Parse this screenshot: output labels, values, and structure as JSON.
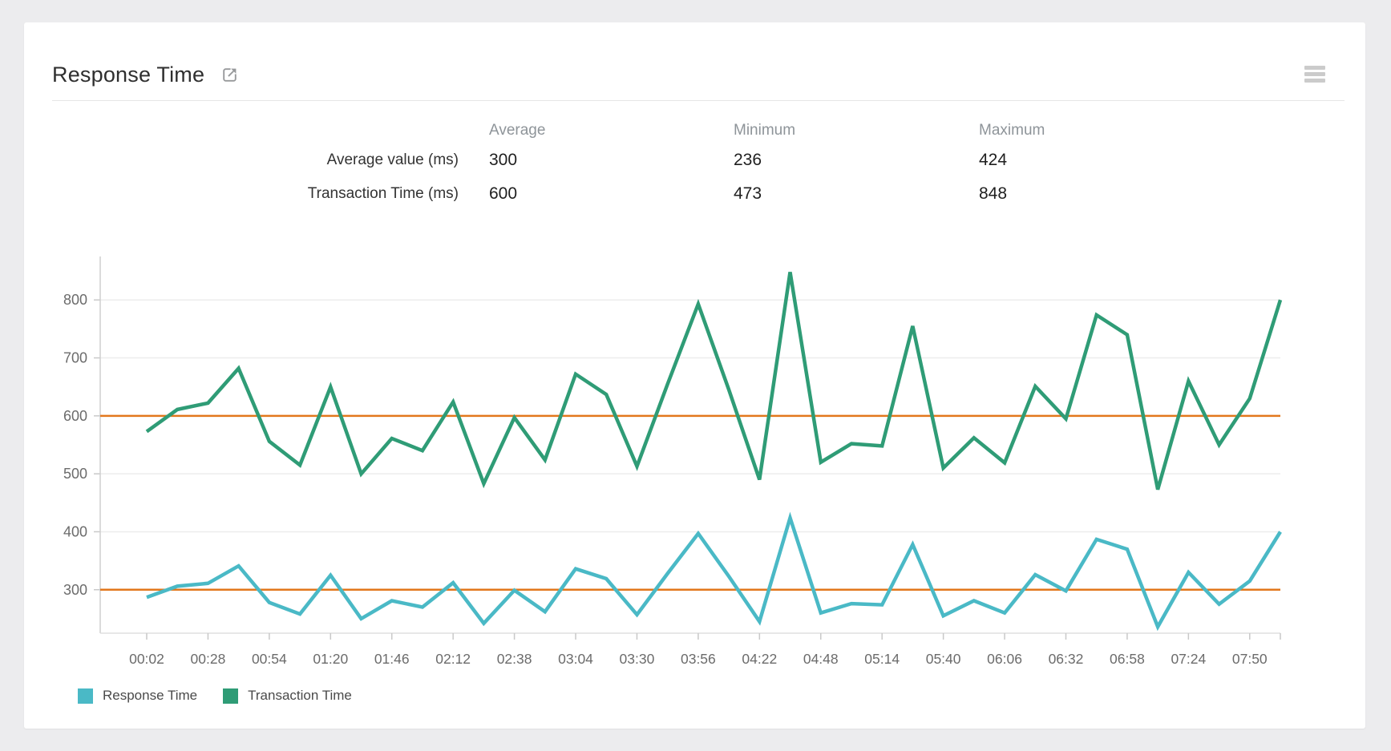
{
  "header": {
    "title": "Response Time"
  },
  "summary": {
    "columns": [
      "Average",
      "Minimum",
      "Maximum"
    ],
    "rows": [
      {
        "label": "Average value (ms)",
        "values": [
          "300",
          "236",
          "424"
        ]
      },
      {
        "label": "Transaction Time (ms)",
        "values": [
          "600",
          "473",
          "848"
        ]
      }
    ]
  },
  "legend": {
    "items": [
      {
        "label": "Response Time",
        "color": "#4ab9c6"
      },
      {
        "label": "Transaction Time",
        "color": "#2f9c76"
      }
    ]
  },
  "chart_data": {
    "type": "line",
    "title": "Response Time",
    "x": [
      "00:02",
      "00:15",
      "00:28",
      "00:41",
      "00:54",
      "01:07",
      "01:20",
      "01:33",
      "01:46",
      "01:59",
      "02:12",
      "02:25",
      "02:38",
      "02:51",
      "03:04",
      "03:17",
      "03:30",
      "03:43",
      "03:56",
      "04:09",
      "04:22",
      "04:35",
      "04:48",
      "05:01",
      "05:14",
      "05:27",
      "05:40",
      "05:53",
      "06:06",
      "06:19",
      "06:32",
      "06:45",
      "06:58",
      "07:11",
      "07:24",
      "07:37",
      "07:50",
      "08:03"
    ],
    "x_tick_labels": [
      "00:02",
      "00:28",
      "00:54",
      "01:20",
      "01:46",
      "02:12",
      "02:38",
      "03:04",
      "03:30",
      "03:56",
      "04:22",
      "04:48",
      "05:14",
      "05:40",
      "06:06",
      "06:32",
      "06:58",
      "07:24",
      "07:50"
    ],
    "series": [
      {
        "name": "Response Time",
        "color": "#4ab9c6",
        "avg_line": 300,
        "values": [
          287,
          306,
          311,
          341,
          278,
          258,
          325,
          250,
          281,
          270,
          312,
          242,
          299,
          262,
          336,
          319,
          257,
          328,
          397,
          323,
          245,
          424,
          260,
          276,
          274,
          378,
          255,
          281,
          260,
          326,
          298,
          387,
          370,
          236,
          330,
          275,
          315,
          400
        ]
      },
      {
        "name": "Transaction Time",
        "color": "#2f9c76",
        "avg_line": 600,
        "values": [
          573,
          611,
          622,
          682,
          556,
          515,
          650,
          500,
          561,
          540,
          624,
          483,
          597,
          524,
          672,
          637,
          513,
          655,
          793,
          645,
          490,
          848,
          520,
          552,
          548,
          755,
          510,
          562,
          519,
          651,
          595,
          774,
          740,
          473,
          660,
          550,
          630,
          800
        ]
      }
    ],
    "avg_line_color": "#e2771c",
    "ylabel": "",
    "xlabel": "",
    "ylim": [
      225,
      875
    ],
    "yticks": [
      300,
      400,
      500,
      600,
      700,
      800
    ],
    "grid": true,
    "legend_position": "bottom"
  }
}
